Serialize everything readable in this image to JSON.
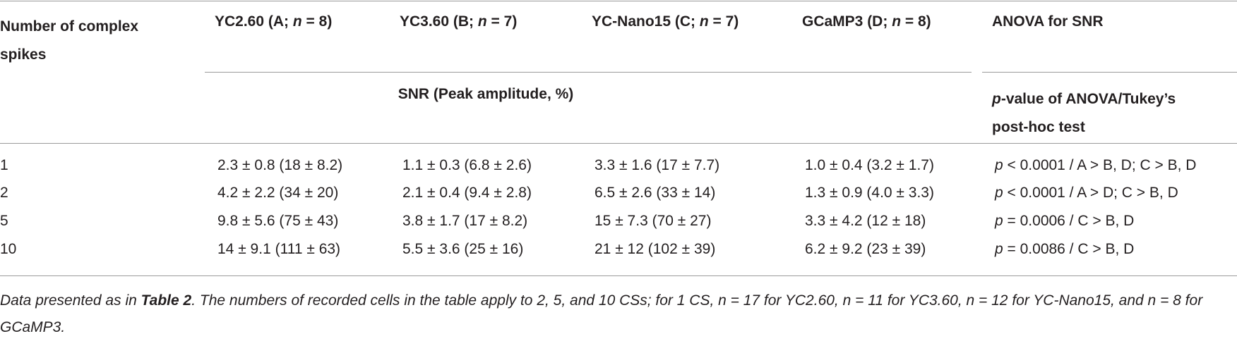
{
  "table": {
    "header": {
      "first": "Number of complex spikes",
      "columns": [
        [
          {
            "text": "YC2.60 (A; "
          },
          {
            "text": "n",
            "italic": true
          },
          {
            "text": " = 8)"
          }
        ],
        [
          {
            "text": "YC3.60 (B; "
          },
          {
            "text": "n",
            "italic": true
          },
          {
            "text": " = 7)"
          }
        ],
        [
          {
            "text": "YC-Nano15 (C; "
          },
          {
            "text": "n",
            "italic": true
          },
          {
            "text": " = 7)"
          }
        ],
        [
          {
            "text": "GCaMP3 (D; "
          },
          {
            "text": "n",
            "italic": true
          },
          {
            "text": " = 8)"
          }
        ],
        "ANOVA for SNR"
      ],
      "subheader": "SNR (Peak amplitude, %)",
      "anova_subheader": [
        {
          "text": "p",
          "italic": true
        },
        {
          "text": "-value of ANOVA/Tukey’s post-hoc test"
        }
      ]
    },
    "rows": [
      [
        "1",
        "2.3 ± 0.8 (18 ± 8.2)",
        "1.1 ± 0.3 (6.8 ± 2.6)",
        "3.3 ± 1.6 (17 ± 7.7)",
        "1.0 ± 0.4 (3.2 ± 1.7)",
        [
          {
            "text": "p",
            "italic": true
          },
          {
            "text": " < 0.0001 / A > B, D; C > B, D"
          }
        ]
      ],
      [
        "2",
        "4.2 ± 2.2 (34 ± 20)",
        "2.1 ± 0.4 (9.4 ± 2.8)",
        "6.5 ± 2.6 (33 ± 14)",
        "1.3 ± 0.9 (4.0 ± 3.3)",
        [
          {
            "text": "p",
            "italic": true
          },
          {
            "text": " < 0.0001 / A > D; C > B, D"
          }
        ]
      ],
      [
        "5",
        "9.8 ± 5.6 (75 ± 43)",
        "3.8 ± 1.7 (17 ± 8.2)",
        "15 ± 7.3 (70 ± 27)",
        "3.3 ± 4.2 (12 ± 18)",
        [
          {
            "text": "p",
            "italic": true
          },
          {
            "text": " = 0.0006 / C > B, D"
          }
        ]
      ],
      [
        "10",
        "14 ± 9.1 (111 ± 63)",
        "5.5 ± 3.6 (25 ± 16)",
        "21 ± 12 (102 ± 39)",
        "6.2 ± 9.2 (23 ± 39)",
        [
          {
            "text": "p",
            "italic": true
          },
          {
            "text": " = 0.0086 / C > B, D"
          }
        ]
      ]
    ],
    "footnote": [
      {
        "text": "Data presented as in "
      },
      {
        "text": "Table 2",
        "bold": true
      },
      {
        "text": ". The numbers of recorded cells in the table apply to 2, 5, and 10 CSs; for 1 CS, n = 17 for YC2.60, n = 11 for YC3.60, n = 12 for YC-Nano15, and n = 8 for GCaMP3."
      }
    ]
  }
}
